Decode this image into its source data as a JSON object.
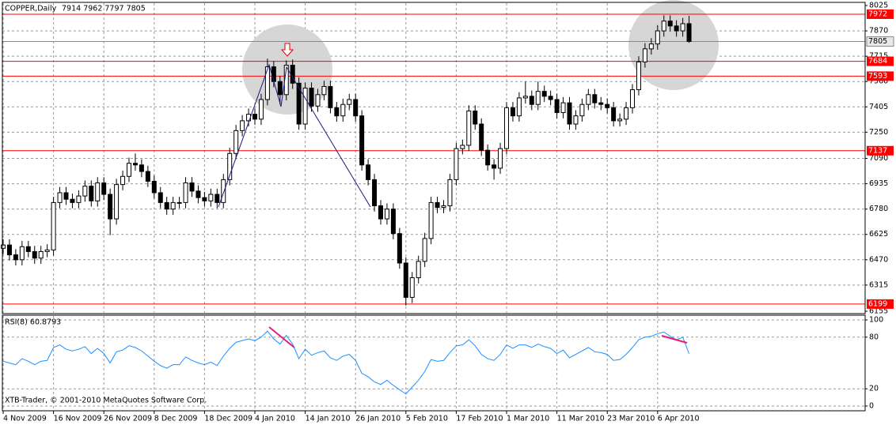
{
  "chart_data": [
    {
      "type": "candlestick",
      "symbol": "COPPER,Daily",
      "quote": "7914 7962 7797 7805",
      "categories": [
        "4 Nov 2009",
        null,
        null,
        null,
        null,
        null,
        null,
        null,
        "16 Nov 2009",
        null,
        null,
        null,
        null,
        null,
        null,
        null,
        "26 Nov 2009",
        null,
        null,
        null,
        null,
        null,
        null,
        null,
        "8 Dec 2009",
        null,
        null,
        null,
        null,
        null,
        null,
        null,
        "18 Dec 2009",
        null,
        null,
        null,
        null,
        null,
        null,
        null,
        "4 Jan 2010",
        null,
        null,
        null,
        null,
        null,
        null,
        null,
        "14 Jan 2010",
        null,
        null,
        null,
        null,
        null,
        null,
        null,
        "26 Jan 2010",
        null,
        null,
        null,
        null,
        null,
        null,
        null,
        "5 Feb 2010",
        null,
        null,
        null,
        null,
        null,
        null,
        null,
        "17 Feb 2010",
        null,
        null,
        null,
        null,
        null,
        null,
        null,
        "1 Mar 2010",
        null,
        null,
        null,
        null,
        null,
        null,
        null,
        "11 Mar 2010",
        null,
        null,
        null,
        null,
        null,
        null,
        null,
        "23 Mar 2010",
        null,
        null,
        null,
        null,
        null,
        null,
        null,
        "6 Apr 2010",
        null,
        null,
        null,
        null,
        null
      ],
      "open": [
        6540,
        6560,
        6500,
        6470,
        6550,
        6520,
        6480,
        6520,
        6530,
        6820,
        6880,
        6840,
        6820,
        6860,
        6920,
        6830,
        6940,
        6870,
        6720,
        6930,
        6980,
        7060,
        7050,
        7010,
        6950,
        6880,
        6820,
        6780,
        6820,
        6820,
        6940,
        6890,
        6850,
        6830,
        6870,
        6820,
        6960,
        7120,
        7260,
        7320,
        7360,
        7330,
        7450,
        7650,
        7560,
        7480,
        7660,
        7550,
        7300,
        7520,
        7410,
        7480,
        7530,
        7400,
        7350,
        7420,
        7450,
        7350,
        7050,
        6960,
        6800,
        6720,
        6780,
        6630,
        6450,
        6240,
        6360,
        6460,
        6600,
        6820,
        6790,
        6800,
        6960,
        7150,
        7170,
        7380,
        7300,
        7140,
        7050,
        7030,
        7150,
        7400,
        7350,
        7460,
        7470,
        7420,
        7500,
        7470,
        7450,
        7370,
        7430,
        7300,
        7350,
        7420,
        7480,
        7430,
        7420,
        7400,
        7320,
        7330,
        7400,
        7510,
        7680,
        7760,
        7790,
        7870,
        7930,
        7900,
        7870,
        7914
      ],
      "high": [
        6595,
        6595,
        6535,
        6585,
        6585,
        6555,
        6555,
        6565,
        6855,
        6915,
        6915,
        6875,
        6895,
        6955,
        6955,
        6975,
        6975,
        6905,
        6965,
        7015,
        7095,
        7120,
        7085,
        7045,
        6985,
        6915,
        6855,
        6855,
        6855,
        6975,
        6975,
        6925,
        6885,
        6905,
        6905,
        6995,
        7155,
        7295,
        7355,
        7395,
        7395,
        7485,
        7700,
        7685,
        7595,
        7690,
        7695,
        7585,
        7555,
        7555,
        7515,
        7565,
        7565,
        7435,
        7455,
        7485,
        7485,
        7385,
        7085,
        6995,
        6835,
        6815,
        6815,
        6665,
        6485,
        6395,
        6495,
        6635,
        6855,
        6855,
        6835,
        6995,
        7185,
        7205,
        7415,
        7415,
        7335,
        7175,
        7085,
        7185,
        7435,
        7435,
        7495,
        7560,
        7505,
        7560,
        7535,
        7505,
        7485,
        7465,
        7465,
        7385,
        7455,
        7515,
        7515,
        7465,
        7455,
        7435,
        7365,
        7435,
        7545,
        7715,
        7795,
        7825,
        7905,
        7965,
        7965,
        7935,
        7949,
        7962
      ],
      "low": [
        6505,
        6465,
        6435,
        6435,
        6485,
        6445,
        6445,
        6485,
        6495,
        6785,
        6805,
        6785,
        6785,
        6825,
        6795,
        6795,
        6835,
        6620,
        6685,
        6895,
        6945,
        7015,
        6975,
        6915,
        6845,
        6785,
        6745,
        6745,
        6785,
        6785,
        6855,
        6815,
        6795,
        6795,
        6785,
        6785,
        6925,
        7085,
        7225,
        7285,
        7295,
        7295,
        7415,
        7525,
        7420,
        7445,
        7515,
        7265,
        7265,
        7375,
        7375,
        7445,
        7365,
        7315,
        7315,
        7385,
        7315,
        7015,
        6925,
        6765,
        6685,
        6685,
        6595,
        6415,
        6190,
        6205,
        6325,
        6425,
        6565,
        6755,
        6755,
        6765,
        6925,
        7115,
        7135,
        7265,
        7105,
        7015,
        6960,
        6995,
        7115,
        7315,
        7315,
        7425,
        7385,
        7385,
        7435,
        7415,
        7335,
        7335,
        7265,
        7265,
        7315,
        7385,
        7395,
        7385,
        7365,
        7285,
        7285,
        7295,
        7365,
        7475,
        7645,
        7725,
        7755,
        7835,
        7865,
        7835,
        7835,
        7797
      ],
      "close": [
        6560,
        6500,
        6470,
        6550,
        6520,
        6480,
        6520,
        6530,
        6820,
        6880,
        6840,
        6820,
        6860,
        6920,
        6830,
        6940,
        6870,
        6720,
        6930,
        6980,
        7060,
        7050,
        7010,
        6950,
        6880,
        6820,
        6780,
        6820,
        6820,
        6940,
        6890,
        6850,
        6830,
        6870,
        6820,
        6960,
        7120,
        7260,
        7320,
        7360,
        7330,
        7450,
        7650,
        7560,
        7480,
        7660,
        7550,
        7300,
        7520,
        7410,
        7480,
        7530,
        7400,
        7350,
        7420,
        7450,
        7350,
        7050,
        6960,
        6800,
        6720,
        6780,
        6630,
        6450,
        6240,
        6360,
        6460,
        6600,
        6820,
        6790,
        6800,
        6960,
        7150,
        7170,
        7380,
        7300,
        7140,
        7050,
        7030,
        7150,
        7400,
        7350,
        7460,
        7470,
        7420,
        7500,
        7470,
        7450,
        7370,
        7430,
        7300,
        7350,
        7420,
        7480,
        7430,
        7420,
        7400,
        7320,
        7330,
        7400,
        7510,
        7680,
        7760,
        7790,
        7870,
        7930,
        7900,
        7870,
        7914,
        7805
      ],
      "up_color": "#ffffff",
      "down_color": "#000000",
      "ylim": [
        6155,
        8025
      ],
      "yticks": [
        8025,
        7870,
        7715,
        7560,
        7405,
        7250,
        7090,
        6935,
        6780,
        6625,
        6470,
        6315,
        6155
      ],
      "grid": true,
      "levels": [
        7972,
        7684,
        7593,
        7137,
        6199
      ],
      "level_color": "#ff0000"
    },
    {
      "type": "line",
      "title": "RSI(8) 60.8793",
      "color": "#1e90ff",
      "values": [
        52,
        50,
        48,
        55,
        52,
        48,
        52,
        53,
        68,
        71,
        66,
        64,
        66,
        69,
        61,
        67,
        61,
        50,
        63,
        65,
        70,
        68,
        64,
        58,
        52,
        47,
        44,
        48,
        48,
        57,
        53,
        50,
        48,
        51,
        47,
        58,
        67,
        74,
        76,
        78,
        76,
        80,
        87,
        78,
        72,
        82,
        72,
        55,
        66,
        59,
        62,
        64,
        56,
        53,
        58,
        60,
        53,
        38,
        34,
        28,
        25,
        30,
        24,
        19,
        14,
        22,
        30,
        40,
        54,
        52,
        53,
        62,
        70,
        71,
        77,
        70,
        60,
        55,
        53,
        60,
        71,
        67,
        71,
        71,
        68,
        72,
        69,
        67,
        61,
        65,
        56,
        60,
        64,
        68,
        63,
        62,
        60,
        53,
        54,
        60,
        68,
        77,
        80,
        81,
        84,
        86,
        81,
        77,
        80,
        60.8793
      ],
      "ylim": [
        0,
        100
      ],
      "yticks": [
        100,
        80,
        20,
        0
      ],
      "grid": true,
      "annotation": "XTB-Trader, © 2001-2010 MetaQuotes Software Corp."
    }
  ]
}
